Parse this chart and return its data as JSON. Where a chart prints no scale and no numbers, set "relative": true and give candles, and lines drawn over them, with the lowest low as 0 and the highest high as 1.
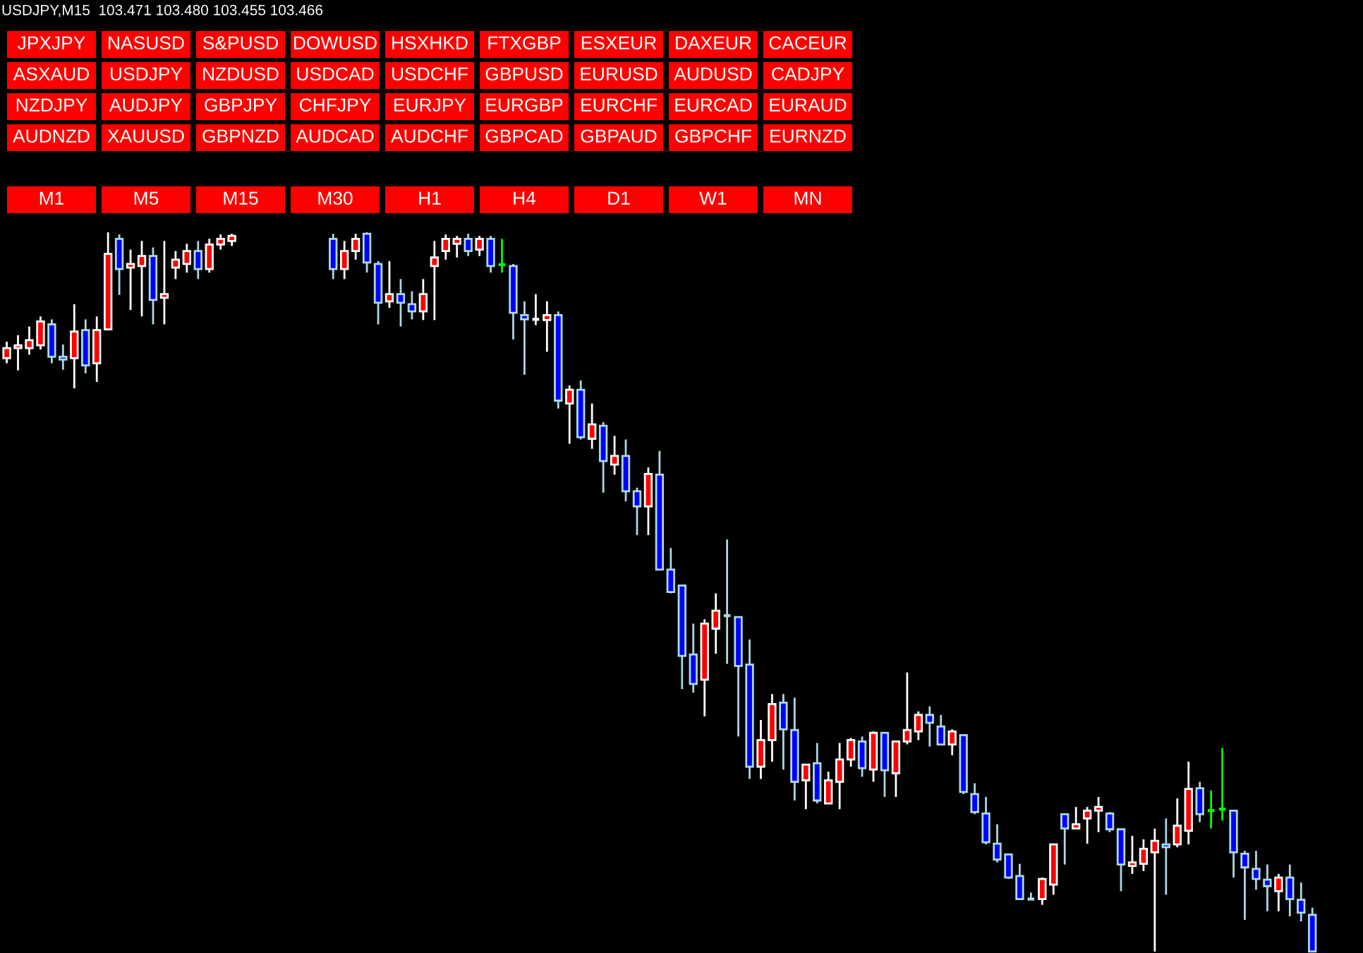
{
  "chart_data": {
    "type": "candlestick",
    "relative": true,
    "title": "USDJPY,M15  103.471 103.480 103.455 103.466",
    "annotations": [
      "JPXJPY",
      "NASUSD",
      "S&PUSD",
      "DOWUSD",
      "HSXHKD",
      "FTXGBP",
      "ESXEUR",
      "DAXEUR",
      "CACEUR",
      "ASXAUD",
      "USDJPY",
      "NZDUSD",
      "USDCAD",
      "USDCHF",
      "GBPUSD",
      "EURUSD",
      "AUDUSD",
      "CADJPY",
      "NZDJPY",
      "AUDJPY",
      "GBPJPY",
      "CHFJPY",
      "EURJPY",
      "EURGBP",
      "EURCHF",
      "EURCAD",
      "EURAUD",
      "AUDNZD",
      "XAUUSD",
      "GBPNZD",
      "AUDCAD",
      "AUDCHF",
      "GBPCAD",
      "GBPAUD",
      "GBPCHF",
      "EURNZD",
      "M1",
      "M5",
      "M15",
      "M30",
      "H1",
      "H4",
      "D1",
      "W1",
      "MN"
    ],
    "categories": [
      null,
      null,
      null,
      null,
      null,
      null,
      null,
      null,
      null,
      null,
      null,
      null,
      null,
      null,
      null,
      null,
      null,
      null,
      null,
      null,
      null,
      null,
      null,
      null,
      null,
      null,
      null,
      null,
      null,
      null,
      null,
      null,
      null,
      null,
      null,
      null,
      null,
      null,
      null,
      null,
      null,
      null,
      null,
      null,
      null,
      null,
      null,
      null,
      null,
      null,
      null,
      null,
      null,
      null,
      null,
      null,
      null,
      null,
      null,
      null,
      null,
      null,
      null,
      null,
      null,
      null,
      null,
      null,
      null,
      null,
      null,
      null,
      null,
      null,
      null,
      null,
      null,
      null,
      null,
      null,
      null,
      null,
      null,
      null,
      null,
      null,
      null,
      null,
      null,
      null,
      null,
      null,
      null,
      null,
      null,
      null,
      null,
      null,
      null,
      null,
      null,
      null,
      null,
      null,
      null,
      null,
      null,
      null,
      null,
      null,
      null,
      null,
      null,
      null,
      null,
      null,
      null
    ],
    "ohlc": [
      [
        0.825,
        0.848,
        0.818,
        0.839
      ],
      [
        0.839,
        0.857,
        0.808,
        0.843
      ],
      [
        0.839,
        0.869,
        0.83,
        0.85
      ],
      [
        0.843,
        0.883,
        0.837,
        0.876
      ],
      [
        0.872,
        0.879,
        0.818,
        0.827
      ],
      [
        0.827,
        0.844,
        0.809,
        0.823
      ],
      [
        0.825,
        0.9,
        0.783,
        0.862
      ],
      [
        0.864,
        0.879,
        0.804,
        0.815
      ],
      [
        0.818,
        0.883,
        0.792,
        0.864
      ],
      [
        0.865,
        1,
        0.865,
        0.97
      ],
      [
        0.991,
        0.997,
        0.913,
        0.949
      ],
      [
        0.951,
        0.976,
        0.892,
        0.956
      ],
      [
        0.953,
        0.988,
        0.883,
        0.967
      ],
      [
        0.967,
        0.979,
        0.872,
        0.906
      ],
      [
        0.909,
        0.988,
        0.872,
        0.914
      ],
      [
        0.951,
        0.974,
        0.935,
        0.962
      ],
      [
        0.956,
        0.984,
        0.944,
        0.974
      ],
      [
        0.974,
        0.988,
        0.935,
        0.949
      ],
      [
        0.949,
        0.991,
        0.944,
        0.983
      ],
      [
        0.983,
        0.997,
        0.976,
        0.991
      ],
      [
        0.988,
        0.998,
        0.981,
        0.995
      ],
      null,
      null,
      null,
      null,
      null,
      null,
      null,
      null,
      [
        0.991,
        0.998,
        0.935,
        0.949
      ],
      [
        0.949,
        0.988,
        0.935,
        0.974
      ],
      [
        0.974,
        0.998,
        0.962,
        0.991
      ],
      [
        0.998,
        1,
        0.944,
        0.958
      ],
      [
        0.956,
        0.96,
        0.872,
        0.902
      ],
      [
        0.904,
        0.96,
        0.895,
        0.914
      ],
      [
        0.914,
        0.935,
        0.869,
        0.902
      ],
      [
        0.9,
        0.918,
        0.879,
        0.89
      ],
      [
        0.89,
        0.935,
        0.878,
        0.914
      ],
      [
        0.953,
        0.988,
        0.878,
        0.965
      ],
      [
        0.974,
        0.997,
        0.962,
        0.991
      ],
      [
        0.984,
        0.995,
        0.965,
        0.991
      ],
      [
        0.991,
        0.998,
        0.967,
        0.974
      ],
      [
        0.976,
        0.995,
        0.967,
        0.991
      ],
      [
        0.991,
        0.995,
        0.944,
        0.953
      ],
      [
        0.955,
        0.991,
        0.944,
        0.955
      ],
      [
        0.953,
        0.956,
        0.851,
        0.888
      ],
      [
        0.885,
        0.904,
        0.802,
        0.879
      ],
      [
        0.879,
        0.914,
        0.871,
        0.879
      ],
      [
        0.878,
        0.904,
        0.834,
        0.885
      ],
      [
        0.885,
        0.89,
        0.755,
        0.766
      ],
      [
        0.762,
        0.787,
        0.706,
        0.781
      ],
      [
        0.781,
        0.794,
        0.712,
        0.715
      ],
      [
        0.713,
        0.762,
        0.699,
        0.733
      ],
      [
        0.731,
        0.736,
        0.638,
        0.682
      ],
      [
        0.677,
        0.717,
        0.663,
        0.689
      ],
      [
        0.689,
        0.712,
        0.626,
        0.64
      ],
      [
        0.64,
        0.645,
        0.579,
        0.619
      ],
      [
        0.619,
        0.673,
        0.579,
        0.664
      ],
      [
        0.663,
        0.696,
        0.53,
        0.531
      ],
      [
        0.531,
        0.561,
        0.498,
        0.5
      ],
      [
        0.509,
        0.509,
        0.365,
        0.411
      ],
      [
        0.413,
        0.456,
        0.36,
        0.372
      ],
      [
        0.378,
        0.462,
        0.327,
        0.456
      ],
      [
        0.449,
        0.498,
        0.414,
        0.474
      ],
      [
        0.467,
        0.573,
        0.4,
        0.467
      ],
      [
        0.465,
        0.465,
        0.299,
        0.397
      ],
      [
        0.399,
        0.434,
        0.24,
        0.257
      ],
      [
        0.257,
        0.322,
        0.24,
        0.294
      ],
      [
        0.294,
        0.358,
        0.264,
        0.344
      ],
      [
        0.346,
        0.358,
        0.253,
        0.309
      ],
      [
        0.308,
        0.353,
        0.21,
        0.236
      ],
      [
        0.238,
        0.26,
        0.198,
        0.26
      ],
      [
        0.262,
        0.29,
        0.206,
        0.21
      ],
      [
        0.206,
        0.25,
        0.205,
        0.238
      ],
      [
        0.236,
        0.29,
        0.198,
        0.267
      ],
      [
        0.267,
        0.297,
        0.257,
        0.294
      ],
      [
        0.292,
        0.299,
        0.243,
        0.255
      ],
      [
        0.253,
        0.306,
        0.236,
        0.304
      ],
      [
        0.304,
        0.304,
        0.215,
        0.252
      ],
      [
        0.248,
        0.292,
        0.215,
        0.292
      ],
      [
        0.292,
        0.388,
        0.288,
        0.308
      ],
      [
        0.306,
        0.334,
        0.294,
        0.329
      ],
      [
        0.329,
        0.341,
        0.285,
        0.318
      ],
      [
        0.313,
        0.329,
        0.287,
        0.288
      ],
      [
        0.288,
        0.309,
        0.273,
        0.306
      ],
      [
        0.301,
        0.301,
        0.219,
        0.222
      ],
      [
        0.219,
        0.234,
        0.191,
        0.194
      ],
      [
        0.192,
        0.215,
        0.149,
        0.152
      ],
      [
        0.15,
        0.177,
        0.124,
        0.128
      ],
      [
        0.135,
        0.136,
        0.101,
        0.103
      ],
      [
        0.105,
        0.122,
        0.072,
        0.073
      ],
      [
        0.073,
        0.082,
        0.072,
        0.073
      ],
      [
        0.073,
        0.103,
        0.065,
        0.101
      ],
      [
        0.093,
        0.149,
        0.079,
        0.149
      ],
      [
        0.191,
        0.191,
        0.121,
        0.171
      ],
      [
        0.171,
        0.201,
        0.17,
        0.177
      ],
      [
        0.185,
        0.201,
        0.15,
        0.196
      ],
      [
        0.196,
        0.215,
        0.166,
        0.201
      ],
      [
        0.192,
        0.194,
        0.166,
        0.17
      ],
      [
        0.17,
        0.17,
        0.084,
        0.121
      ],
      [
        0.119,
        0.161,
        0.108,
        0.124
      ],
      [
        0.122,
        0.156,
        0.112,
        0.143
      ],
      [
        0.138,
        0.171,
        0,
        0.154
      ],
      [
        0.149,
        0.185,
        0.079,
        0.145
      ],
      [
        0.149,
        0.213,
        0.145,
        0.175
      ],
      [
        0.168,
        0.264,
        0.149,
        0.226
      ],
      [
        0.227,
        0.236,
        0.18,
        0.191
      ],
      [
        0.196,
        0.224,
        0.171,
        0.196
      ],
      [
        0.198,
        0.283,
        0.182,
        0.198
      ],
      [
        0.196,
        0.196,
        0.103,
        0.138
      ],
      [
        0.136,
        0.14,
        0.044,
        0.117
      ],
      [
        0.115,
        0.14,
        0.086,
        0.101
      ],
      [
        0.1,
        0.121,
        0.056,
        0.091
      ],
      [
        0.084,
        0.108,
        0.056,
        0.103
      ],
      [
        0.103,
        0.121,
        0.049,
        0.073
      ],
      [
        0.072,
        0.096,
        0.042,
        0.054
      ],
      [
        0.051,
        0.061,
        0,
        0
      ]
    ],
    "colors": [
      "#ff0000",
      "#ff0000",
      "#ff0000",
      "#ff0000",
      "#0000ff",
      "#0000ff",
      "#ff0000",
      "#0000ff",
      "#ff0000",
      "#ff0000",
      "#0000ff",
      "#ff0000",
      "#ff0000",
      "#0000ff",
      "#ff0000",
      "#ff0000",
      "#ff0000",
      "#0000ff",
      "#ff0000",
      "#ff0000",
      "#ff0000",
      null,
      null,
      null,
      null,
      null,
      null,
      null,
      null,
      "#0000ff",
      "#ff0000",
      "#ff0000",
      "#0000ff",
      "#0000ff",
      "#ff0000",
      "#0000ff",
      "#0000ff",
      "#ff0000",
      "#ff0000",
      "#ff0000",
      "#ff0000",
      "#0000ff",
      "#ff0000",
      "#0000ff",
      "#00ff00",
      "#0000ff",
      "#0000ff",
      "#ffffff",
      "#ff0000",
      "#0000ff",
      "#ff0000",
      "#0000ff",
      "#ff0000",
      "#0000ff",
      "#ff0000",
      "#0000ff",
      "#0000ff",
      "#ff0000",
      "#0000ff",
      "#0000ff",
      "#0000ff",
      "#0000ff",
      "#ff0000",
      "#ff0000",
      "#add8e6",
      "#0000ff",
      "#0000ff",
      "#ff0000",
      "#ff0000",
      "#0000ff",
      "#0000ff",
      "#ff0000",
      "#0000ff",
      "#ff0000",
      "#ff0000",
      "#ff0000",
      "#0000ff",
      "#ff0000",
      "#0000ff",
      "#ff0000",
      "#ff0000",
      "#ff0000",
      "#0000ff",
      "#0000ff",
      "#ff0000",
      "#0000ff",
      "#0000ff",
      "#0000ff",
      "#0000ff",
      "#0000ff",
      "#0000ff",
      "#add8e6",
      "#ff0000",
      "#ff0000",
      "#0000ff",
      "#ff0000",
      "#ff0000",
      "#ff0000",
      "#0000ff",
      "#0000ff",
      "#ff0000",
      "#ff0000",
      "#ff0000",
      "#0000ff",
      "#ff0000",
      "#ff0000",
      "#0000ff",
      "#00ff00",
      "#00ff00",
      "#0000ff",
      "#0000ff",
      "#0000ff",
      "#0000ff",
      "#ff0000",
      "#0000ff",
      "#0000ff",
      "#0000ff"
    ]
  }
}
